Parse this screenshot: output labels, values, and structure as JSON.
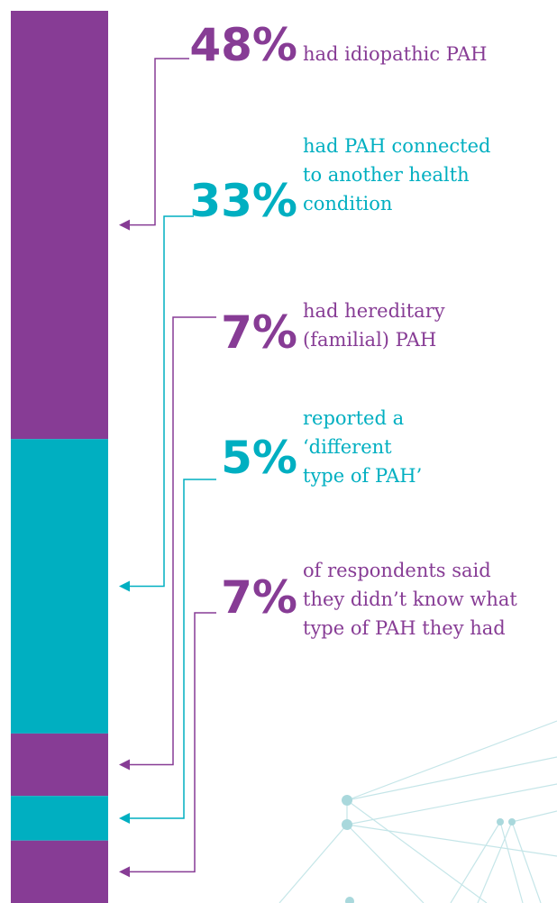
{
  "chart_data": {
    "type": "stacked-bar",
    "values": [
      48,
      33,
      7,
      5,
      7
    ],
    "value_labels": [
      "48%",
      "33%",
      "7%",
      "5%",
      "7%"
    ],
    "colors": [
      "#873c95",
      "#00afc1",
      "#873c95",
      "#00afc1",
      "#873c95"
    ],
    "descriptions": [
      [
        "had idiopathic PAH"
      ],
      [
        "had PAH connected",
        "to another health",
        "condition"
      ],
      [
        "had hereditary",
        "(familial) PAH"
      ],
      [
        "reported a",
        "‘different",
        "type of PAH’"
      ],
      [
        "of respondents said",
        "they didn’t know what",
        "type of PAH they had"
      ]
    ]
  }
}
